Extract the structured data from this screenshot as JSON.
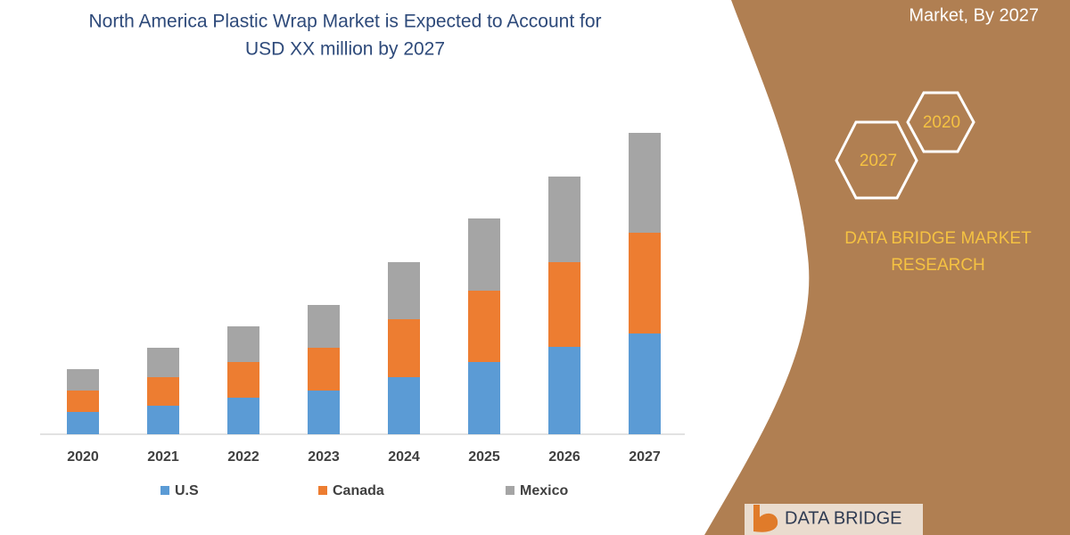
{
  "chart_data": {
    "type": "stacked_bar",
    "title": "North America Plastic Wrap Market is Expected to Account for",
    "subtitle": "USD XX million by 2027",
    "categories": [
      "2020",
      "2021",
      "2022",
      "2023",
      "2024",
      "2025",
      "2026",
      "2027"
    ],
    "series": [
      {
        "name": "U.S",
        "color": "#5b9bd5",
        "values": [
          25,
          32,
          41,
          49,
          64,
          81,
          98,
          113
        ]
      },
      {
        "name": "Canada",
        "color": "#ed7d31",
        "values": [
          24,
          32,
          40,
          48,
          65,
          80,
          95,
          113
        ]
      },
      {
        "name": "Mexico",
        "color": "#a5a5a5",
        "values": [
          24,
          33,
          40,
          48,
          64,
          81,
          96,
          112
        ]
      }
    ],
    "ylim": [
      0,
      350
    ],
    "grid": false
  },
  "panel": {
    "heading": "Market, By 2027",
    "hexagons": [
      "2020",
      "2027"
    ],
    "brand_lines": [
      "DATA BRIDGE MARKET",
      "RESEARCH"
    ],
    "logo": "DATA BRIDGE"
  }
}
